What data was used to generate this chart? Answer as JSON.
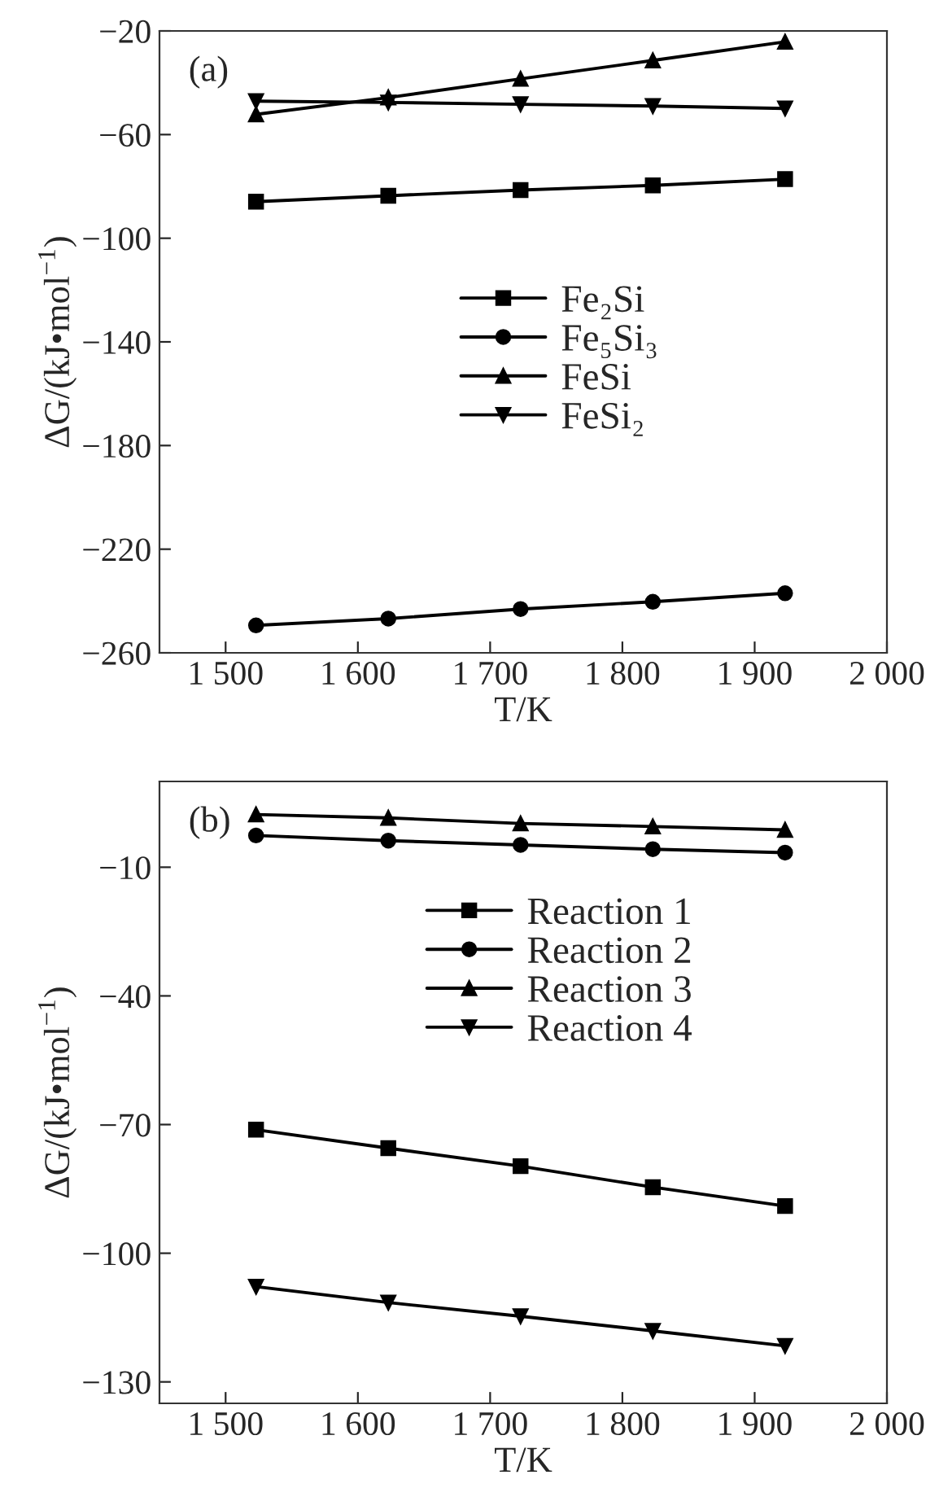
{
  "chart_data": [
    {
      "type": "line",
      "annotations": [
        "(a)"
      ],
      "xlabel": "T/K",
      "ylabel": "ΔG/(kJ•mol$^{−1}$)",
      "x": [
        1523,
        1623,
        1723,
        1823,
        1923
      ],
      "xlim": [
        1450,
        2000
      ],
      "ylim": [
        -260,
        -20
      ],
      "xticks": [
        {
          "value": 1500,
          "label": "1 500"
        },
        {
          "value": 1600,
          "label": "1 600"
        },
        {
          "value": 1700,
          "label": "1 700"
        },
        {
          "value": 1800,
          "label": "1 800"
        },
        {
          "value": 1900,
          "label": "1 900"
        },
        {
          "value": 2000,
          "label": "2 000"
        }
      ],
      "yticks": [
        {
          "value": -260,
          "label": "−260"
        },
        {
          "value": -220,
          "label": "−220"
        },
        {
          "value": -180,
          "label": "−180"
        },
        {
          "value": -140,
          "label": "−140"
        },
        {
          "value": -100,
          "label": "−100"
        },
        {
          "value": -60,
          "label": "−60"
        },
        {
          "value": -20,
          "label": "−20"
        }
      ],
      "legend": "center",
      "grid": false,
      "series": [
        {
          "name": "Fe₂Si",
          "color": "#000000",
          "marker": "square",
          "values": [
            -85.9,
            -83.6,
            -81.4,
            -79.6,
            -77.2
          ]
        },
        {
          "name": "Fe₅Si₃",
          "color": "#000000",
          "marker": "circle",
          "values": [
            -249.4,
            -246.8,
            -243.1,
            -240.3,
            -237.0
          ]
        },
        {
          "name": "FeSi",
          "color": "#000000",
          "marker": "triangle",
          "values": [
            -52.2,
            -45.7,
            -38.5,
            -31.4,
            -24.2
          ]
        },
        {
          "name": "FeSi₂",
          "color": "#000000",
          "marker": "triangle_down",
          "values": [
            -47.1,
            -47.6,
            -48.3,
            -49.0,
            -49.9
          ]
        }
      ]
    },
    {
      "type": "line",
      "annotations": [
        "(b)"
      ],
      "xlabel": "T/K",
      "ylabel": "ΔG/(kJ•mol$^{−1}$)",
      "x": [
        1523,
        1623,
        1723,
        1823,
        1923
      ],
      "xlim": [
        1450,
        2000
      ],
      "ylim": [
        -135,
        10
      ],
      "xticks": [
        {
          "value": 1500,
          "label": "1 500"
        },
        {
          "value": 1600,
          "label": "1 600"
        },
        {
          "value": 1700,
          "label": "1 700"
        },
        {
          "value": 1800,
          "label": "1 800"
        },
        {
          "value": 1900,
          "label": "1 900"
        },
        {
          "value": 2000,
          "label": "2 000"
        }
      ],
      "yticks": [
        {
          "value": -130,
          "label": "−130"
        },
        {
          "value": -100,
          "label": "−100"
        },
        {
          "value": -70,
          "label": "−70"
        },
        {
          "value": -40,
          "label": "−40"
        },
        {
          "value": -10,
          "label": "−10"
        }
      ],
      "legend": "top",
      "grid": false,
      "series": [
        {
          "name": "Reaction 1",
          "color": "#000000",
          "marker": "square",
          "values": [
            -71.2,
            -75.5,
            -79.7,
            -84.6,
            -89.0
          ]
        },
        {
          "name": "Reaction 2",
          "color": "#000000",
          "marker": "circle",
          "values": [
            -2.6,
            -3.8,
            -4.8,
            -5.8,
            -6.6
          ]
        },
        {
          "name": "Reaction 3",
          "color": "#000000",
          "marker": "triangle",
          "values": [
            2.3,
            1.5,
            0.2,
            -0.5,
            -1.3
          ]
        },
        {
          "name": "Reaction 4",
          "color": "#000000",
          "marker": "triangle_down",
          "values": [
            -107.8,
            -111.5,
            -114.7,
            -118.1,
            -121.6
          ]
        }
      ]
    }
  ]
}
